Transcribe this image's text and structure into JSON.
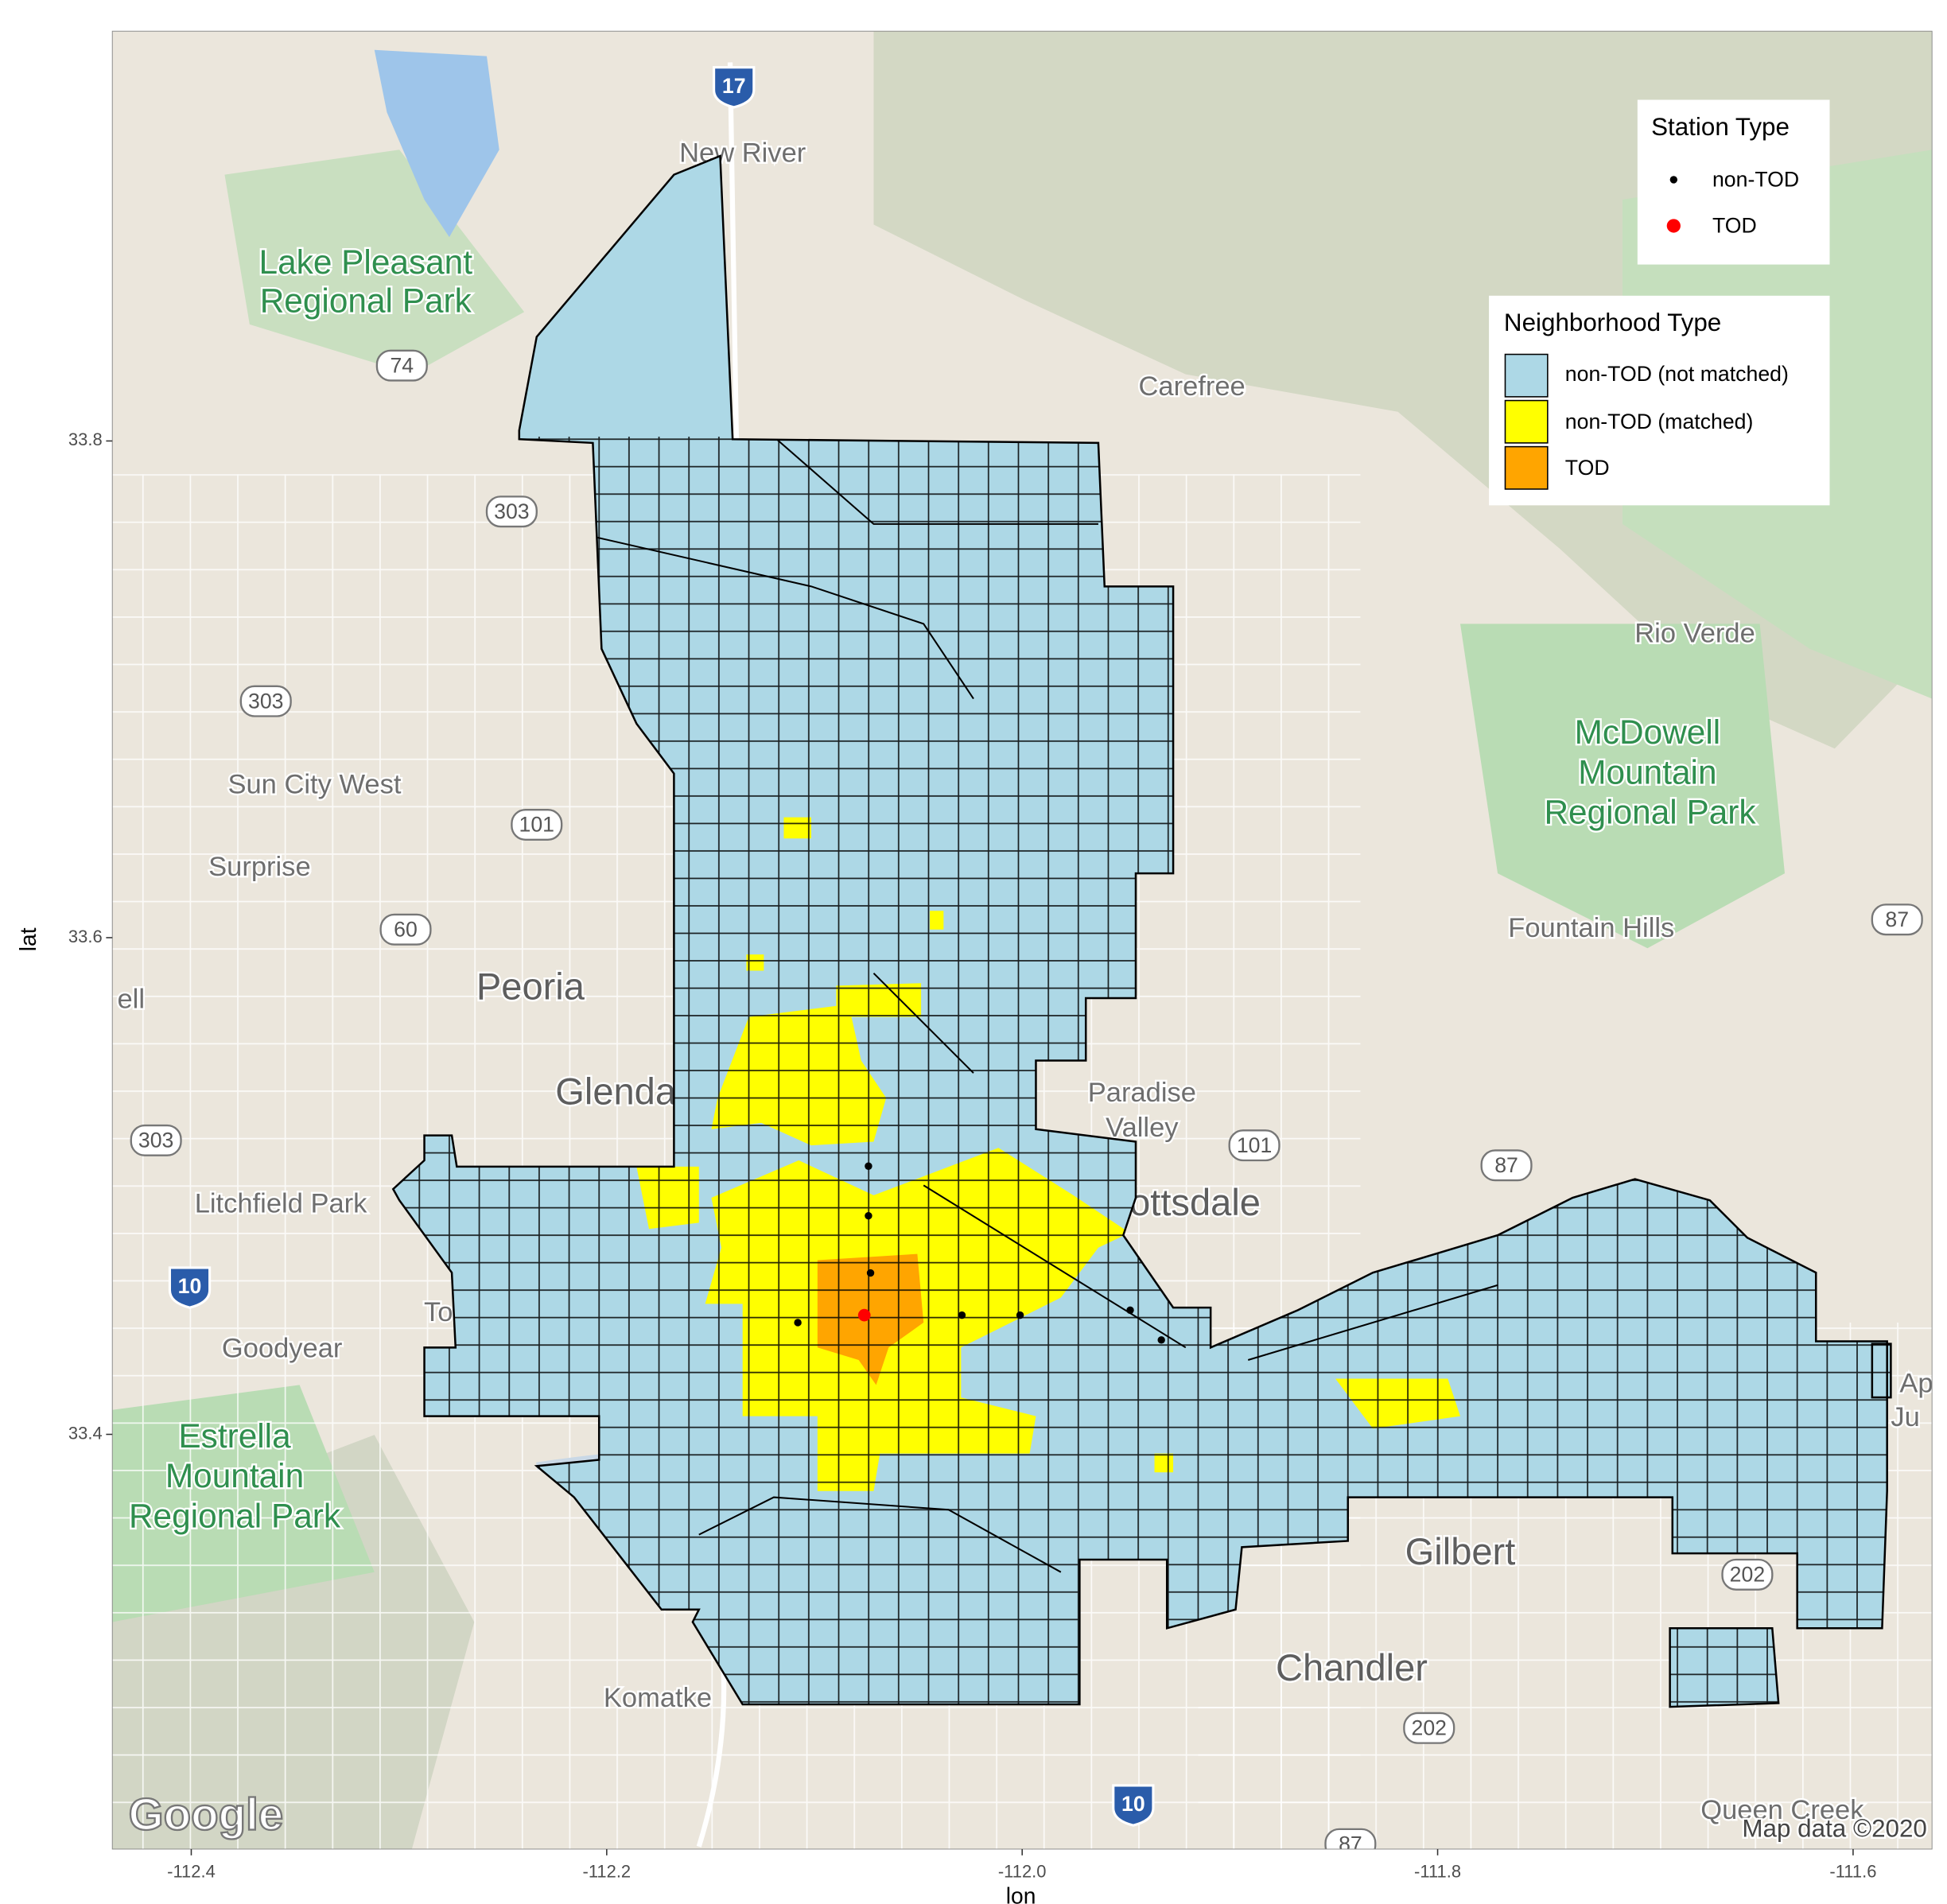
{
  "chart_data": {
    "type": "map",
    "x_label": "lon",
    "y_label": "lat",
    "xlim": [
      -112.438,
      -111.562
    ],
    "ylim": [
      33.233,
      33.965
    ],
    "xticks": [
      -112.4,
      -112.2,
      {
        "value": -112,
        "label": "-112.0"
      },
      -111.8,
      -111.6
    ],
    "yticks": [
      33.4,
      33.6,
      33.8
    ],
    "series_title": "Station Type",
    "series": [
      {
        "name": "non-TOD",
        "color": "#000000",
        "lon": [
          -112.074,
          -112.074,
          -112.073,
          -112.029,
          -112.001,
          -111.948,
          -111.933,
          -112.108
        ],
        "lat": [
          33.508,
          33.488,
          33.465,
          33.448,
          33.448,
          33.45,
          33.438,
          33.445
        ]
      },
      {
        "name": "TOD",
        "color": "#ff0000",
        "lon": [
          -112.076
        ],
        "lat": [
          33.448
        ]
      }
    ],
    "area_title": "Neighborhood Type",
    "areas": [
      {
        "name": "non-TOD (not matched)",
        "color": "#add8e6"
      },
      {
        "name": "non-TOD (matched)",
        "color": "#ffff00"
      },
      {
        "name": "TOD",
        "color": "#ffa500"
      }
    ],
    "places": [
      "New River",
      "Lake Pleasant",
      "Regional Park",
      "Carefree",
      "Rio Verde",
      "McDowell",
      "Mountain",
      "Regional Park",
      "Fountain Hills",
      "Sun City West",
      "Surprise",
      "Peoria",
      "Glendale",
      "Paradise",
      "Valley",
      "Scottsdale",
      "Litchfield Park",
      "Tolleson",
      "Goodyear",
      "Estrella",
      "Mountain",
      "Regional Park",
      "Gilbert",
      "Chandler",
      "Komatke",
      "Queen Creek",
      "ell",
      "Ap",
      "Ju"
    ],
    "route_shields": [
      "17",
      "74",
      "303",
      "303",
      "303",
      "101",
      "101",
      "60",
      "10",
      "10",
      "87",
      "87",
      "202",
      "202",
      "87"
    ],
    "logo": "Google",
    "attribution": "Map data ©2020"
  }
}
